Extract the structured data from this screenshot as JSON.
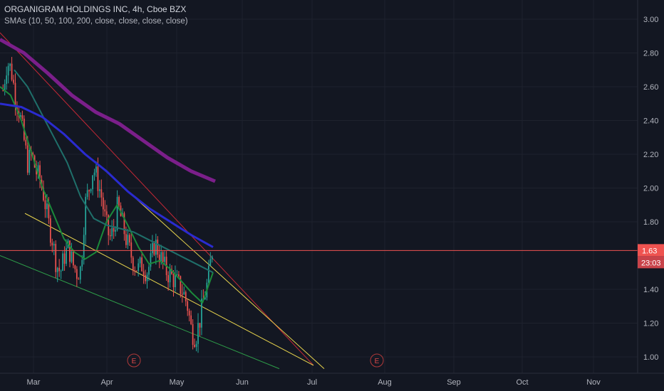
{
  "header": {
    "symbol_line": "ORGANIGRAM HOLDINGS INC, 4h, Cboe BZX",
    "indicator_line": "SMAs (10, 50, 100, 200, close, close, close, close)"
  },
  "colors": {
    "background": "#131722",
    "up": "#26a69a",
    "down": "#ef5350",
    "sma10": "#1b8a3a",
    "sma50": "#1f6f6a",
    "sma100": "#2a2bd0",
    "sma200": "#7b1f8a",
    "trend_red": "#c62836",
    "trend_yellow": "#e8d44d",
    "trend_green": "#2e9e49",
    "price_line": "#ef5350"
  },
  "chart_data": {
    "type": "candlestick",
    "x_tick_labels": [
      "Mar",
      "Apr",
      "May",
      "Jun",
      "Jul",
      "Aug",
      "Sep",
      "Oct",
      "Nov"
    ],
    "y_tick_labels": [
      "3.00",
      "2.80",
      "2.60",
      "2.40",
      "2.20",
      "2.00",
      "1.80",
      "1.40",
      "1.20",
      "1.00"
    ],
    "ylim": [
      0.93,
      3.05
    ],
    "last_price": "1.63",
    "countdown": "23:03",
    "earnings_markers": [
      {
        "label": "E",
        "month": "Apr-mid"
      },
      {
        "label": "E",
        "month": "Jul-late"
      }
    ],
    "close_path": [
      2.58,
      2.75,
      2.7,
      2.55,
      2.45,
      2.3,
      2.15,
      2.2,
      2.1,
      2.05,
      1.95,
      1.8,
      1.7,
      1.55,
      1.5,
      1.6,
      1.65,
      1.55,
      1.5,
      1.52,
      1.9,
      2.0,
      2.12,
      2.05,
      1.95,
      1.8,
      1.7,
      1.75,
      1.9,
      1.8,
      1.7,
      1.62,
      1.55,
      1.52,
      1.55,
      1.5,
      1.56,
      1.68,
      1.62,
      1.55,
      1.5,
      1.48,
      1.45,
      1.42,
      1.38,
      1.3,
      1.15,
      1.12,
      1.22,
      1.35,
      1.45,
      1.63
    ],
    "sma_series": [
      {
        "name": "SMA 10",
        "values": [
          2.6,
          2.55,
          2.4,
          2.2,
          2.0,
          1.85,
          1.7,
          1.62,
          1.58,
          1.62,
          1.8,
          1.9,
          1.78,
          1.65,
          1.55,
          1.57,
          1.52,
          1.45,
          1.38,
          1.32,
          1.5
        ]
      },
      {
        "name": "SMA 50",
        "values": [
          2.7,
          2.6,
          2.45,
          2.3,
          2.15,
          1.95,
          1.82,
          1.78,
          1.76,
          1.74,
          1.7,
          1.66,
          1.62,
          1.58,
          1.54,
          1.5
        ]
      },
      {
        "name": "SMA 100",
        "values": [
          2.5,
          2.48,
          2.42,
          2.32,
          2.2,
          2.1,
          1.98,
          1.88,
          1.8,
          1.72,
          1.65
        ]
      },
      {
        "name": "SMA 200",
        "values": [
          2.88,
          2.8,
          2.68,
          2.55,
          2.45,
          2.38,
          2.28,
          2.18,
          2.1,
          2.04
        ]
      }
    ],
    "trendlines": [
      {
        "name": "red",
        "from": [
          0.0,
          2.92
        ],
        "to": [
          440,
          0.95
        ]
      },
      {
        "name": "yellow-upper",
        "from": [
          135,
          2.15
        ],
        "to": [
          455,
          0.93
        ]
      },
      {
        "name": "yellow-lower",
        "from": [
          35,
          1.85
        ],
        "to": [
          440,
          0.95
        ]
      },
      {
        "name": "green",
        "from": [
          0,
          1.6
        ],
        "to": [
          392,
          0.93
        ]
      }
    ]
  }
}
